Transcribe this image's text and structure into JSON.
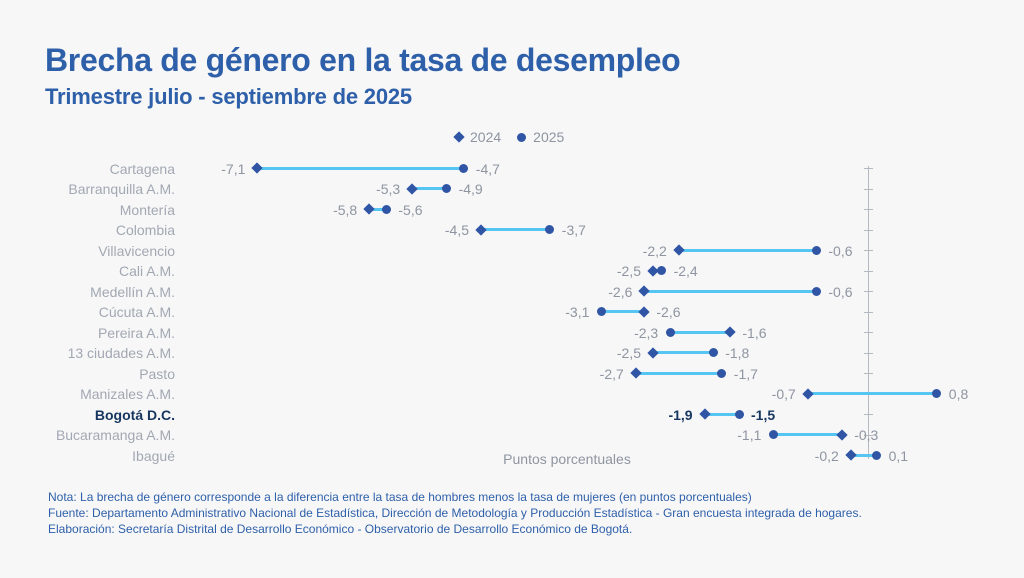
{
  "header": {
    "title": "Brecha de género en la tasa de desempleo",
    "subtitle": "Trimestre julio - septiembre de 2025"
  },
  "legend": {
    "items": [
      {
        "label": "2024",
        "marker": "diamond"
      },
      {
        "label": "2025",
        "marker": "circle"
      }
    ]
  },
  "chart_data": {
    "type": "dumbbell",
    "title": "Brecha de género en la tasa de desempleo",
    "subtitle": "Trimestre julio - septiembre de 2025",
    "xlabel": "Puntos porcentuales",
    "legend_position": "top-center",
    "grid": false,
    "zero_axis": "vertical-right",
    "xlim": [
      -8.3,
      1.8
    ],
    "decimal_separator": ",",
    "categories": [
      "Cartagena",
      "Barranquilla A.M.",
      "Montería",
      "Colombia",
      "Villavicencio",
      "Cali A.M.",
      "Medellín A.M.",
      "Cúcuta A.M.",
      "Pereira A.M.",
      "13 ciudades A.M.",
      "Pasto",
      "Manizales A.M.",
      "Bogotá D.C.",
      "Bucaramanga A.M.",
      "Ibagué"
    ],
    "series": [
      {
        "name": "2024",
        "marker": "diamond",
        "values": [
          -7.1,
          -5.3,
          -5.8,
          -4.5,
          -2.2,
          -2.5,
          -2.6,
          -2.6,
          -1.6,
          -2.5,
          -2.7,
          -0.7,
          -1.9,
          -0.3,
          -0.2
        ]
      },
      {
        "name": "2025",
        "marker": "circle",
        "values": [
          -4.7,
          -4.9,
          -5.6,
          -3.7,
          -0.6,
          -2.4,
          -0.6,
          -3.1,
          -2.3,
          -1.8,
          -1.7,
          0.8,
          -1.5,
          -1.1,
          0.1
        ]
      }
    ],
    "emphasized_category": "Bogotá D.C."
  },
  "footer": {
    "note": "Nota: La brecha de género corresponde a la diferencia entre la tasa de hombres menos la tasa de mujeres (en puntos porcentuales)",
    "source": "Fuente: Departamento Administrativo Nacional de Estadística, Dirección de Metodología y Producción Estadística - Gran encuesta integrada de hogares.",
    "elaboration": "Elaboración: Secretaría Distrital de Desarrollo Económico - Observatorio de Desarrollo Económico de Bogotá."
  },
  "colors": {
    "background": "#F7F7F8",
    "title_blue": "#2E5FA9",
    "marker_navy": "#2F55A4",
    "connector_light_blue": "#56C5F2",
    "label_gray": "#A2A8B2",
    "value_gray": "#8E95A0",
    "axis_gray": "#B5BAC1",
    "emphasis_navy": "#17365F"
  }
}
